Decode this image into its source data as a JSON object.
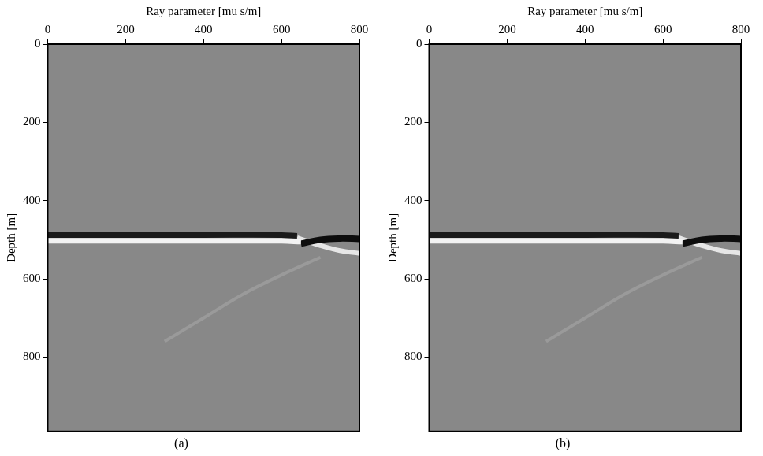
{
  "chart_data": [
    {
      "type": "line",
      "title": "(a)",
      "x_label": "Ray parameter [mu s/m]",
      "y_label": "Depth [m]",
      "xlim": [
        0,
        800
      ],
      "xticks": [
        0,
        200,
        400,
        600,
        800
      ],
      "ylim": [
        0,
        990
      ],
      "yticks": [
        0,
        200,
        400,
        600,
        800
      ],
      "grid": false,
      "series": [
        {
          "color": "#1a1a1a",
          "x": [
            0,
            200,
            400,
            600,
            640
          ],
          "values": [
            488,
            488,
            488,
            488,
            490
          ]
        },
        {
          "color": "#f2f2f2",
          "x": [
            0,
            200,
            400,
            600,
            650
          ],
          "values": [
            503,
            503,
            503,
            503,
            505
          ]
        },
        {
          "color": "#0d0d0d",
          "x": [
            650,
            700,
            750,
            800
          ],
          "values": [
            510,
            500,
            497,
            498
          ]
        },
        {
          "color": "#e6e6e6",
          "x": [
            640,
            700,
            750,
            800
          ],
          "values": [
            495,
            515,
            528,
            535
          ]
        },
        {
          "color": "#9a9a9a",
          "x": [
            300,
            400,
            500,
            600,
            700
          ],
          "values": [
            760,
            700,
            640,
            590,
            545
          ]
        }
      ]
    },
    {
      "type": "line",
      "title": "(b)",
      "x_label": "Ray parameter [mu s/m]",
      "y_label": "Depth [m]",
      "xlim": [
        0,
        800
      ],
      "xticks": [
        0,
        200,
        400,
        600,
        800
      ],
      "ylim": [
        0,
        990
      ],
      "yticks": [
        0,
        200,
        400,
        600,
        800
      ],
      "grid": false,
      "series": [
        {
          "color": "#1a1a1a",
          "x": [
            0,
            200,
            400,
            600,
            640
          ],
          "values": [
            488,
            488,
            488,
            488,
            490
          ]
        },
        {
          "color": "#f2f2f2",
          "x": [
            0,
            200,
            400,
            600,
            650
          ],
          "values": [
            503,
            503,
            503,
            503,
            505
          ]
        },
        {
          "color": "#0d0d0d",
          "x": [
            650,
            700,
            750,
            800
          ],
          "values": [
            510,
            500,
            497,
            498
          ]
        },
        {
          "color": "#e6e6e6",
          "x": [
            640,
            700,
            750,
            800
          ],
          "values": [
            495,
            515,
            528,
            535
          ]
        },
        {
          "color": "#9a9a9a",
          "x": [
            300,
            400,
            500,
            600,
            700
          ],
          "values": [
            760,
            700,
            640,
            590,
            545
          ]
        }
      ]
    }
  ]
}
